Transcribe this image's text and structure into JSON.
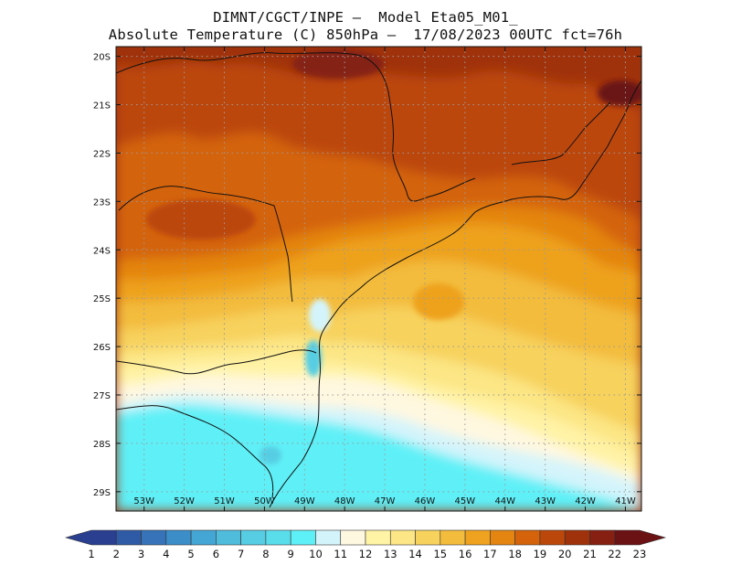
{
  "title": {
    "line1": "DIMNT/CGCT/INPE –  Model Eta05_M01_",
    "line2": "Absolute Temperature (C) 850hPa –  17/08/2023 00UTC fct=76h"
  },
  "map": {
    "lon_range": [
      -53.7,
      -40.6
    ],
    "lat_range": [
      -29.4,
      -19.8
    ],
    "lat_ticks": [
      {
        "v": -20,
        "label": "20S"
      },
      {
        "v": -21,
        "label": "21S"
      },
      {
        "v": -22,
        "label": "22S"
      },
      {
        "v": -23,
        "label": "23S"
      },
      {
        "v": -24,
        "label": "24S"
      },
      {
        "v": -25,
        "label": "25S"
      },
      {
        "v": -26,
        "label": "26S"
      },
      {
        "v": -27,
        "label": "27S"
      },
      {
        "v": -28,
        "label": "28S"
      },
      {
        "v": -29,
        "label": "29S"
      }
    ],
    "lon_ticks": [
      {
        "v": -53,
        "label": "53W"
      },
      {
        "v": -52,
        "label": "52W"
      },
      {
        "v": -51,
        "label": "51W"
      },
      {
        "v": -50,
        "label": "50W"
      },
      {
        "v": -49,
        "label": "49W"
      },
      {
        "v": -48,
        "label": "48W"
      },
      {
        "v": -47,
        "label": "47W"
      },
      {
        "v": -46,
        "label": "46W"
      },
      {
        "v": -45,
        "label": "45W"
      },
      {
        "v": -44,
        "label": "44W"
      },
      {
        "v": -43,
        "label": "43W"
      },
      {
        "v": -42,
        "label": "42W"
      },
      {
        "v": -41,
        "label": "41W"
      }
    ],
    "grid": "dotted"
  },
  "colorbar": {
    "labels": [
      "1",
      "2",
      "3",
      "4",
      "5",
      "6",
      "7",
      "8",
      "9",
      "10",
      "11",
      "12",
      "13",
      "14",
      "15",
      "16",
      "17",
      "18",
      "19",
      "20",
      "21",
      "22",
      "23"
    ],
    "colors": [
      "#2a3f8f",
      "#2f5aa6",
      "#3673b8",
      "#3b8ec8",
      "#44a6d4",
      "#4fbcdc",
      "#56cde3",
      "#5addeb",
      "#5ef0f7",
      "#d4f4fb",
      "#fff8e0",
      "#fff3a6",
      "#fce685",
      "#f7d25d",
      "#f3bc3c",
      "#eea21f",
      "#e48511",
      "#d4630b",
      "#bc470a",
      "#a0320b",
      "#852012",
      "#6b1215"
    ]
  }
}
